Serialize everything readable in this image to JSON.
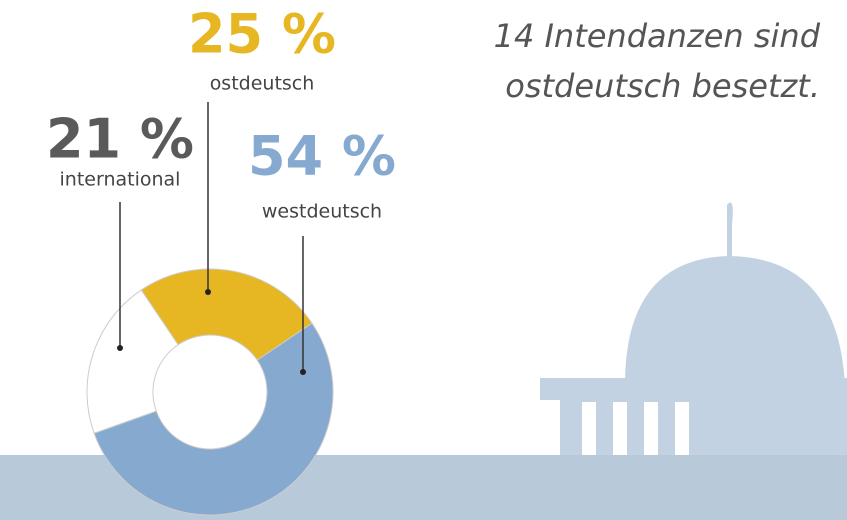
{
  "chart_data": {
    "type": "pie",
    "categories": [
      "ostdeutsch",
      "westdeutsch",
      "international"
    ],
    "values": [
      25,
      54,
      21
    ],
    "value_labels": [
      "25 %",
      "54 %",
      "21 %"
    ],
    "colors": [
      "#e6b722",
      "#86a9d0",
      "#ffffff"
    ],
    "label_colors": [
      "#e6b722",
      "#86a9d0",
      "#5a5a5a"
    ],
    "annotation": [
      "14 Intendanzen sind",
      "ostdeutsch besetzt."
    ]
  }
}
